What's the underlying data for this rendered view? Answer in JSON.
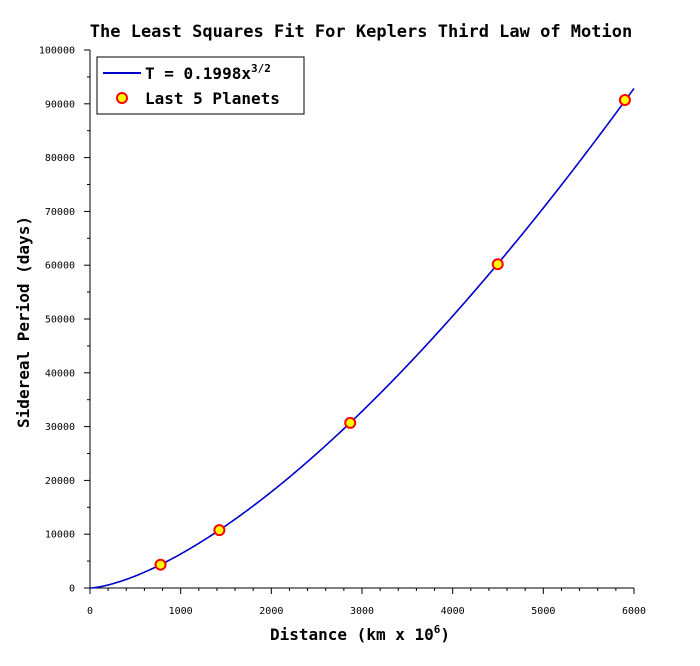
{
  "chart_data": {
    "type": "line",
    "title": "The Least Squares Fit For Keplers Third Law of Motion",
    "xlabel": "Distance (km x 10",
    "xlabel_sup": "6",
    "xlabel_end": ")",
    "ylabel": "Sidereal Period (days)",
    "xlim": [
      0,
      6000
    ],
    "ylim": [
      0,
      100000
    ],
    "x_ticks": [
      0,
      1000,
      2000,
      3000,
      4000,
      5000,
      6000
    ],
    "x_tick_labels": [
      "0",
      "1000",
      "2000",
      "3000",
      "4000",
      "5000",
      "6000"
    ],
    "y_ticks": [
      0,
      10000,
      20000,
      30000,
      40000,
      50000,
      60000,
      70000,
      80000,
      90000,
      100000
    ],
    "y_tick_labels": [
      "0",
      "10000",
      "20000",
      "30000",
      "40000",
      "50000",
      "60000",
      "70000",
      "80000",
      "90000",
      "100000"
    ],
    "grid": false,
    "legend_position": "top-left",
    "series": [
      {
        "name": "T = 0.1998x",
        "name_sup": "3/2",
        "kind": "line",
        "coefficient": 0.1998,
        "exponent": 1.5,
        "x_range": [
          0,
          6000
        ],
        "color": "#0000cc"
      },
      {
        "name": "Last 5 Planets",
        "kind": "scatter",
        "x": [
          778,
          1427,
          2870,
          4497,
          5900
        ],
        "y": [
          4333,
          10759,
          30685,
          60188,
          90700
        ],
        "fill": "#ffff00",
        "edge": "#ff0000"
      }
    ]
  }
}
